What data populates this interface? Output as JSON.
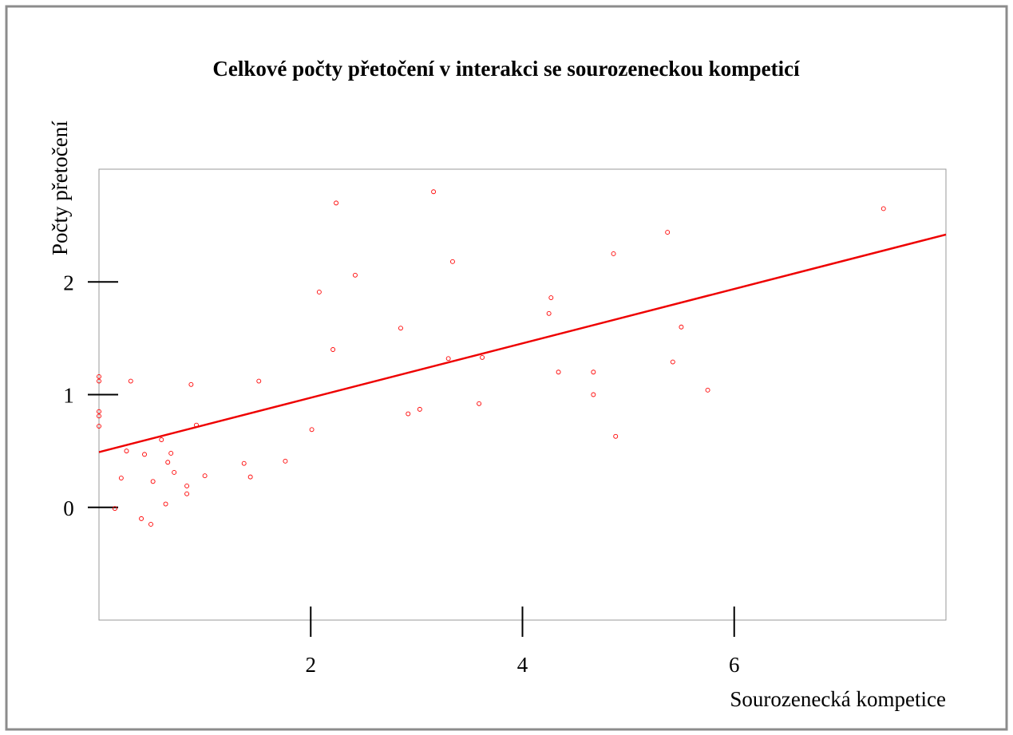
{
  "chart_data": {
    "type": "scatter",
    "title": "Celkové počty přetočení v interakci se sourozeneckou kompeticí",
    "x_label": "Sourozenecká kompetice",
    "y_label": "Počty přetočení",
    "xlim": [
      0,
      8
    ],
    "ylim": [
      -1,
      3
    ],
    "xticks": [
      2,
      4,
      6
    ],
    "yticks": [
      0,
      1,
      2
    ],
    "series": [
      {
        "color": "#ff0000",
        "mode": "markers",
        "x": [
          0.0,
          0.0,
          0.0,
          0.0,
          0.0,
          0.15,
          0.21,
          0.26,
          0.3,
          0.4,
          0.43,
          0.49,
          0.51,
          0.59,
          0.63,
          0.65,
          0.68,
          0.71,
          0.83,
          0.83,
          0.87,
          0.92,
          1.0,
          1.37,
          1.43,
          1.51,
          1.76,
          2.01,
          2.08,
          2.21,
          2.24,
          2.42,
          2.85,
          2.92,
          3.03,
          3.16,
          3.3,
          3.34,
          3.59,
          3.62,
          4.25,
          4.27,
          4.34,
          4.67,
          4.67,
          4.86,
          4.88,
          5.37,
          5.42,
          5.5,
          5.75,
          7.41
        ],
        "values": [
          1.16,
          1.12,
          0.85,
          0.81,
          0.72,
          -0.01,
          0.26,
          0.5,
          1.12,
          -0.1,
          0.47,
          -0.15,
          0.23,
          0.6,
          0.03,
          0.4,
          0.48,
          0.31,
          0.19,
          0.12,
          1.09,
          0.73,
          0.28,
          0.39,
          0.27,
          1.12,
          0.41,
          0.69,
          1.91,
          1.4,
          2.7,
          2.06,
          1.59,
          0.83,
          0.87,
          2.8,
          1.32,
          2.18,
          0.92,
          1.33,
          1.72,
          1.86,
          1.2,
          1.2,
          1.0,
          2.25,
          0.63,
          2.44,
          1.29,
          1.6,
          1.04,
          2.65
        ]
      },
      {
        "color": "#ee0000",
        "mode": "line",
        "x": [
          0,
          8
        ],
        "values": [
          0.49,
          2.42
        ]
      }
    ]
  }
}
